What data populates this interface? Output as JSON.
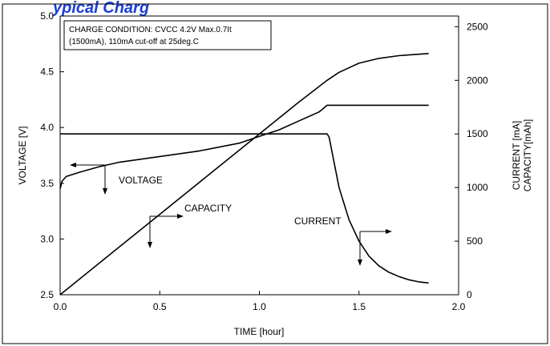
{
  "colors": {
    "heading": "#1a3fd6",
    "line": "#000000",
    "background": "#ffffff"
  },
  "chart_data": {
    "type": "line",
    "title_fragment": "ypical Charg",
    "xlabel": "TIME  [hour]",
    "ylabel_left": "VOLTAGE  [V]",
    "ylabel_right_1": "CURRENT [mA]",
    "ylabel_right_2": "CAPACITY[mAh]",
    "xlim": [
      0.0,
      2.0
    ],
    "ylim_left": [
      2.5,
      5.0
    ],
    "ylim_right": [
      0,
      2600
    ],
    "x_ticks": [
      "0.0",
      "0.5",
      "1.0",
      "1.5",
      "2.0"
    ],
    "y_left_ticks": [
      "2.5",
      "3.0",
      "3.5",
      "4.0",
      "4.5",
      "5.0"
    ],
    "y_right_ticks": [
      "0",
      "500",
      "1000",
      "1500",
      "2000",
      "2500"
    ],
    "y_left_tick_values": [
      2.5,
      3.0,
      3.5,
      4.0,
      4.5,
      5.0
    ],
    "y_right_tick_values": [
      0,
      500,
      1000,
      1500,
      2000,
      2500
    ],
    "grid": false,
    "condition_box": {
      "line1": "CHARGE CONDITION:  CVCC 4.2V Max.0.7It",
      "line2": "(1500mA), 110mA cut-off at 25deg.C"
    },
    "annotations": {
      "voltage": "VOLTAGE",
      "capacity": "CAPACITY",
      "current": "CURRENT"
    },
    "series": [
      {
        "name": "VOLTAGE",
        "axis": "left",
        "x": [
          0.0,
          0.01,
          0.03,
          0.1,
          0.2,
          0.3,
          0.5,
          0.7,
          0.9,
          1.0,
          1.1,
          1.2,
          1.3,
          1.34,
          1.5,
          1.7,
          1.85
        ],
        "y": [
          3.45,
          3.52,
          3.56,
          3.6,
          3.65,
          3.69,
          3.74,
          3.79,
          3.86,
          3.92,
          3.98,
          4.06,
          4.14,
          4.2,
          4.2,
          4.2,
          4.2
        ]
      },
      {
        "name": "CAPACITY",
        "axis": "right",
        "x": [
          0.0,
          0.25,
          0.5,
          0.75,
          1.0,
          1.2,
          1.34,
          1.4,
          1.5,
          1.6,
          1.7,
          1.85
        ],
        "y": [
          0,
          375,
          750,
          1125,
          1500,
          1800,
          2000,
          2075,
          2160,
          2205,
          2230,
          2250
        ]
      },
      {
        "name": "CURRENT",
        "axis": "right",
        "x": [
          0.0,
          1.34,
          1.35,
          1.4,
          1.45,
          1.5,
          1.55,
          1.6,
          1.65,
          1.7,
          1.75,
          1.8,
          1.85
        ],
        "y": [
          1500,
          1500,
          1470,
          1000,
          700,
          500,
          360,
          270,
          210,
          170,
          140,
          120,
          110
        ]
      }
    ]
  }
}
